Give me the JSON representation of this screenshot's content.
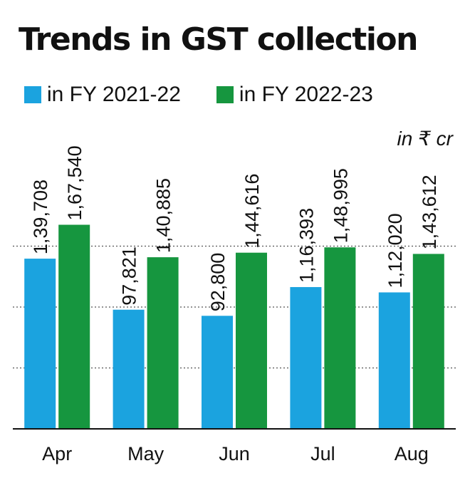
{
  "chart_data": {
    "type": "bar",
    "title": "Trends in GST collection",
    "unit_label": "in ₹ cr",
    "categories": [
      "Apr",
      "May",
      "Jun",
      "Jul",
      "Aug"
    ],
    "series": [
      {
        "name": "in FY 2021-22",
        "color": "#1ba3df",
        "values": [
          139708,
          97821,
          92800,
          116393,
          112020
        ],
        "labels": [
          "1,39,708",
          "97,821",
          "92,800",
          "1,16,393",
          "1,12,020"
        ]
      },
      {
        "name": "in FY 2022-23",
        "color": "#16963f",
        "values": [
          167540,
          140885,
          144616,
          148995,
          143612
        ],
        "labels": [
          "1,67,540",
          "1,40,885",
          "1,44,616",
          "1,48,995",
          "1,43,612"
        ]
      }
    ],
    "ylim": [
      0,
      200000
    ],
    "grid": true,
    "legend_position": "top-left"
  }
}
